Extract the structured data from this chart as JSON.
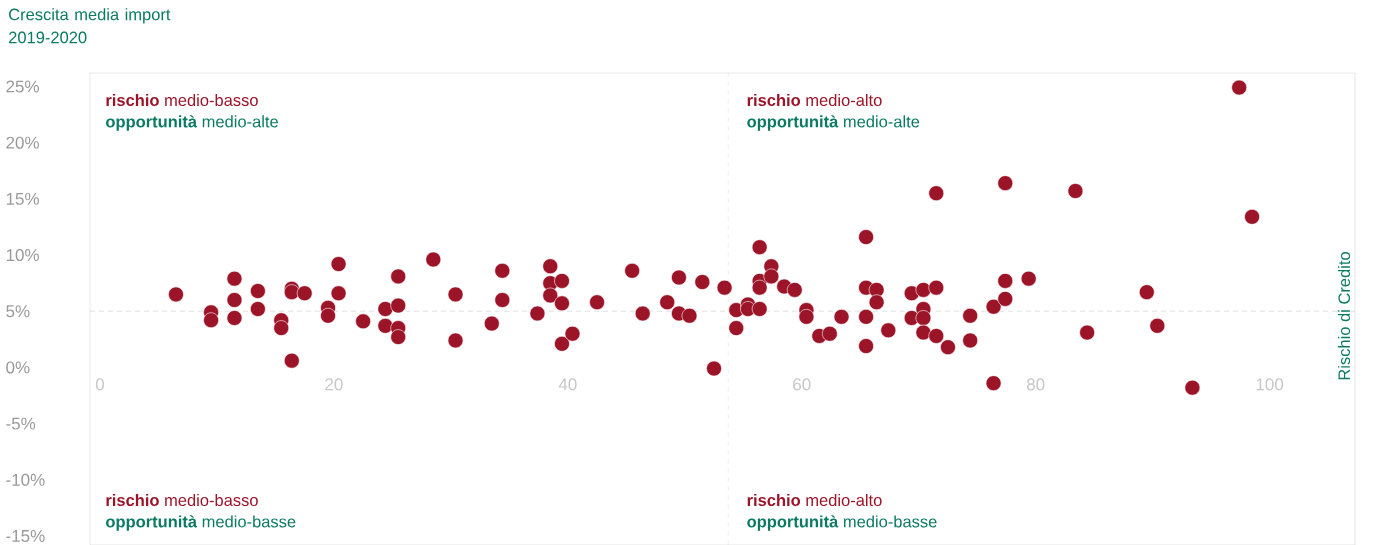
{
  "chart_data": {
    "type": "scatter",
    "ylabel": "Crescita media import 2019-2020",
    "x": [
      6.5,
      9.5,
      9.5,
      11.5,
      11.5,
      11.5,
      13.5,
      13.5,
      15.5,
      15.5,
      16.4,
      16.4,
      17.5,
      16.4,
      19.5,
      19.5,
      20.4,
      20.4,
      22.5,
      24.4,
      24.4,
      25.5,
      25.5,
      25.5,
      25.5,
      28.5,
      30.4,
      30.4,
      33.5,
      34.4,
      34.4,
      37.4,
      38.5,
      38.5,
      38.5,
      39.5,
      39.5,
      39.5,
      40.4,
      42.5,
      45.5,
      46.4,
      48.5,
      49.5,
      49.5,
      50.4,
      51.5,
      52.5,
      53.4,
      54.4,
      54.4,
      55.4,
      55.4,
      56.4,
      56.4,
      56.4,
      56.4,
      57.4,
      57.4,
      58.5,
      59.4,
      60.4,
      60.4,
      61.5,
      62.4,
      63.4,
      65.5,
      65.5,
      65.5,
      65.5,
      66.4,
      66.4,
      67.4,
      69.4,
      69.4,
      70.4,
      71.5,
      70.4,
      70.4,
      70.4,
      71.5,
      72.5,
      74.4,
      74.4,
      76.4,
      77.4,
      77.4,
      79.4,
      76.4,
      71.5,
      77.4,
      83.4,
      97.4,
      98.5,
      84.4,
      89.5,
      90.4,
      93.4
    ],
    "values": [
      6.5,
      4.9,
      4.2,
      7.9,
      6.0,
      4.4,
      6.8,
      5.2,
      4.2,
      3.5,
      7.0,
      6.7,
      6.6,
      0.6,
      5.3,
      4.6,
      9.2,
      6.6,
      4.1,
      5.2,
      3.7,
      8.1,
      5.5,
      3.5,
      2.7,
      9.6,
      6.5,
      2.4,
      3.9,
      8.6,
      6.0,
      4.8,
      9.0,
      7.5,
      6.4,
      7.7,
      5.7,
      2.1,
      3.0,
      5.8,
      8.6,
      4.8,
      5.8,
      8.0,
      4.8,
      4.6,
      7.6,
      -0.1,
      7.1,
      5.1,
      3.5,
      5.6,
      5.2,
      10.7,
      7.7,
      7.1,
      5.2,
      9.0,
      8.1,
      7.2,
      6.9,
      5.1,
      4.5,
      2.8,
      3.0,
      4.5,
      11.6,
      7.1,
      4.5,
      1.9,
      6.9,
      5.8,
      3.3,
      6.6,
      4.4,
      6.9,
      7.1,
      5.2,
      4.4,
      3.1,
      2.8,
      1.8,
      4.6,
      2.4,
      5.4,
      7.7,
      6.1,
      7.9,
      -1.4,
      15.5,
      16.4,
      15.7,
      24.9,
      13.4,
      3.1,
      6.7,
      3.7,
      -1.8
    ],
    "color": "#9b1428",
    "xlim": [
      -0.85,
      107.3
    ],
    "ylim": [
      -15.8,
      26.2
    ],
    "xticks": [
      0,
      20,
      40,
      60,
      80,
      100
    ],
    "yticks": [
      {
        "value": -15,
        "label": "-15%"
      },
      {
        "value": -10,
        "label": "-10%"
      },
      {
        "value": -5,
        "label": "-5%"
      },
      {
        "value": 0,
        "label": "0%"
      },
      {
        "value": 5,
        "label": "5%"
      },
      {
        "value": 10,
        "label": "10%"
      },
      {
        "value": 15,
        "label": "15%"
      },
      {
        "value": 20,
        "label": "20%"
      },
      {
        "value": 25,
        "label": "25%"
      }
    ],
    "ref_lines": [
      {
        "axis": "x",
        "value": 53.7,
        "color": "#b4b4b4",
        "line_style": "dashed"
      },
      {
        "axis": "y",
        "value": 5,
        "color": "#b4b4b4",
        "line_style": "dashed"
      }
    ],
    "annotations": [
      "**rischio** medio-basso",
      "**opportunità** medio-alte",
      "**rischio** medio-alto",
      "**opportunità** medio-alte",
      "**rischio** medio-basso",
      "**opportunità** medio-basse",
      "**rischio** medio-alto",
      "**opportunità** medio-basse",
      "Rischio di Credito"
    ]
  }
}
